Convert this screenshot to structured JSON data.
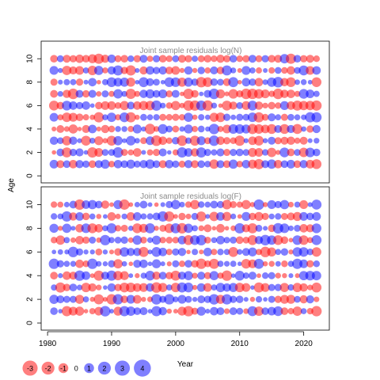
{
  "chart_data": {
    "type": "scatter",
    "subtype": "bubble",
    "panels": [
      {
        "id": "N",
        "title": "Joint sample residuals log(N)",
        "ylim": [
          -0.6,
          11.5
        ],
        "yticks": [
          0,
          2,
          4,
          6,
          8,
          10
        ]
      },
      {
        "id": "F",
        "title": "Joint sample residuals log(F)",
        "ylim": [
          -0.6,
          11.5
        ],
        "yticks": [
          0,
          2,
          4,
          6,
          8,
          10
        ]
      }
    ],
    "xlabel": "Year",
    "ylabel": "Age",
    "xlim": [
      1979,
      2024
    ],
    "xticks": [
      1980,
      1990,
      2000,
      2010,
      2020
    ],
    "years": [
      1981,
      2022
    ],
    "ages": [
      1,
      10
    ],
    "colors": {
      "positive": "#0000ff",
      "negative": "#ff0000",
      "opacity": 0.5
    },
    "legend": {
      "values": [
        -3,
        -2,
        -1,
        0,
        1,
        2,
        3,
        4
      ],
      "labels": [
        "-3",
        "-2",
        "-1",
        "0",
        "1",
        "2",
        "3",
        "4"
      ],
      "placement": "bottom-left"
    },
    "sample_residuals": {
      "note_values": "residual magnitudes per age, year 1981-2022",
      "N": [
        {
          "age": 1,
          "values": [
            1.3,
            -1.0,
            0.9,
            -1.2,
            1.1,
            0.8,
            -0.9,
            1.0,
            1.5,
            -0.6,
            1.2,
            0.9,
            1.4,
            0.7,
            1.1,
            1.6,
            0.9,
            -1.0,
            1.2,
            0.8,
            -0.7,
            1.1,
            -1.0,
            0.9,
            0.6,
            -1.6,
            1.0,
            -0.9,
            1.5,
            -0.6,
            1.2,
            -1.4,
            -2.0,
            1.0,
            1.6,
            -1.2,
            0.9,
            1.3,
            -0.9,
            1.1,
            -1.3,
            -1.8
          ]
        },
        {
          "age": 10,
          "values": [
            -0.9,
            0.7,
            -1.0,
            -0.8,
            -1.2,
            -0.9,
            -1.4,
            -2.0,
            -1.1,
            1.2,
            -0.7,
            -0.9,
            0.6,
            -0.8,
            1.0,
            -0.5,
            0.8,
            -0.9,
            -0.6,
            0.7,
            -1.0,
            -0.8,
            0.5,
            -0.7,
            -0.9,
            -0.6,
            -1.1,
            -0.8,
            0.9,
            -0.6,
            -0.8,
            1.0,
            -0.7,
            0.8,
            -0.9,
            -1.0,
            1.6,
            -2.0,
            0.9,
            -0.8,
            -1.0,
            -0.6
          ]
        }
      ]
    }
  }
}
